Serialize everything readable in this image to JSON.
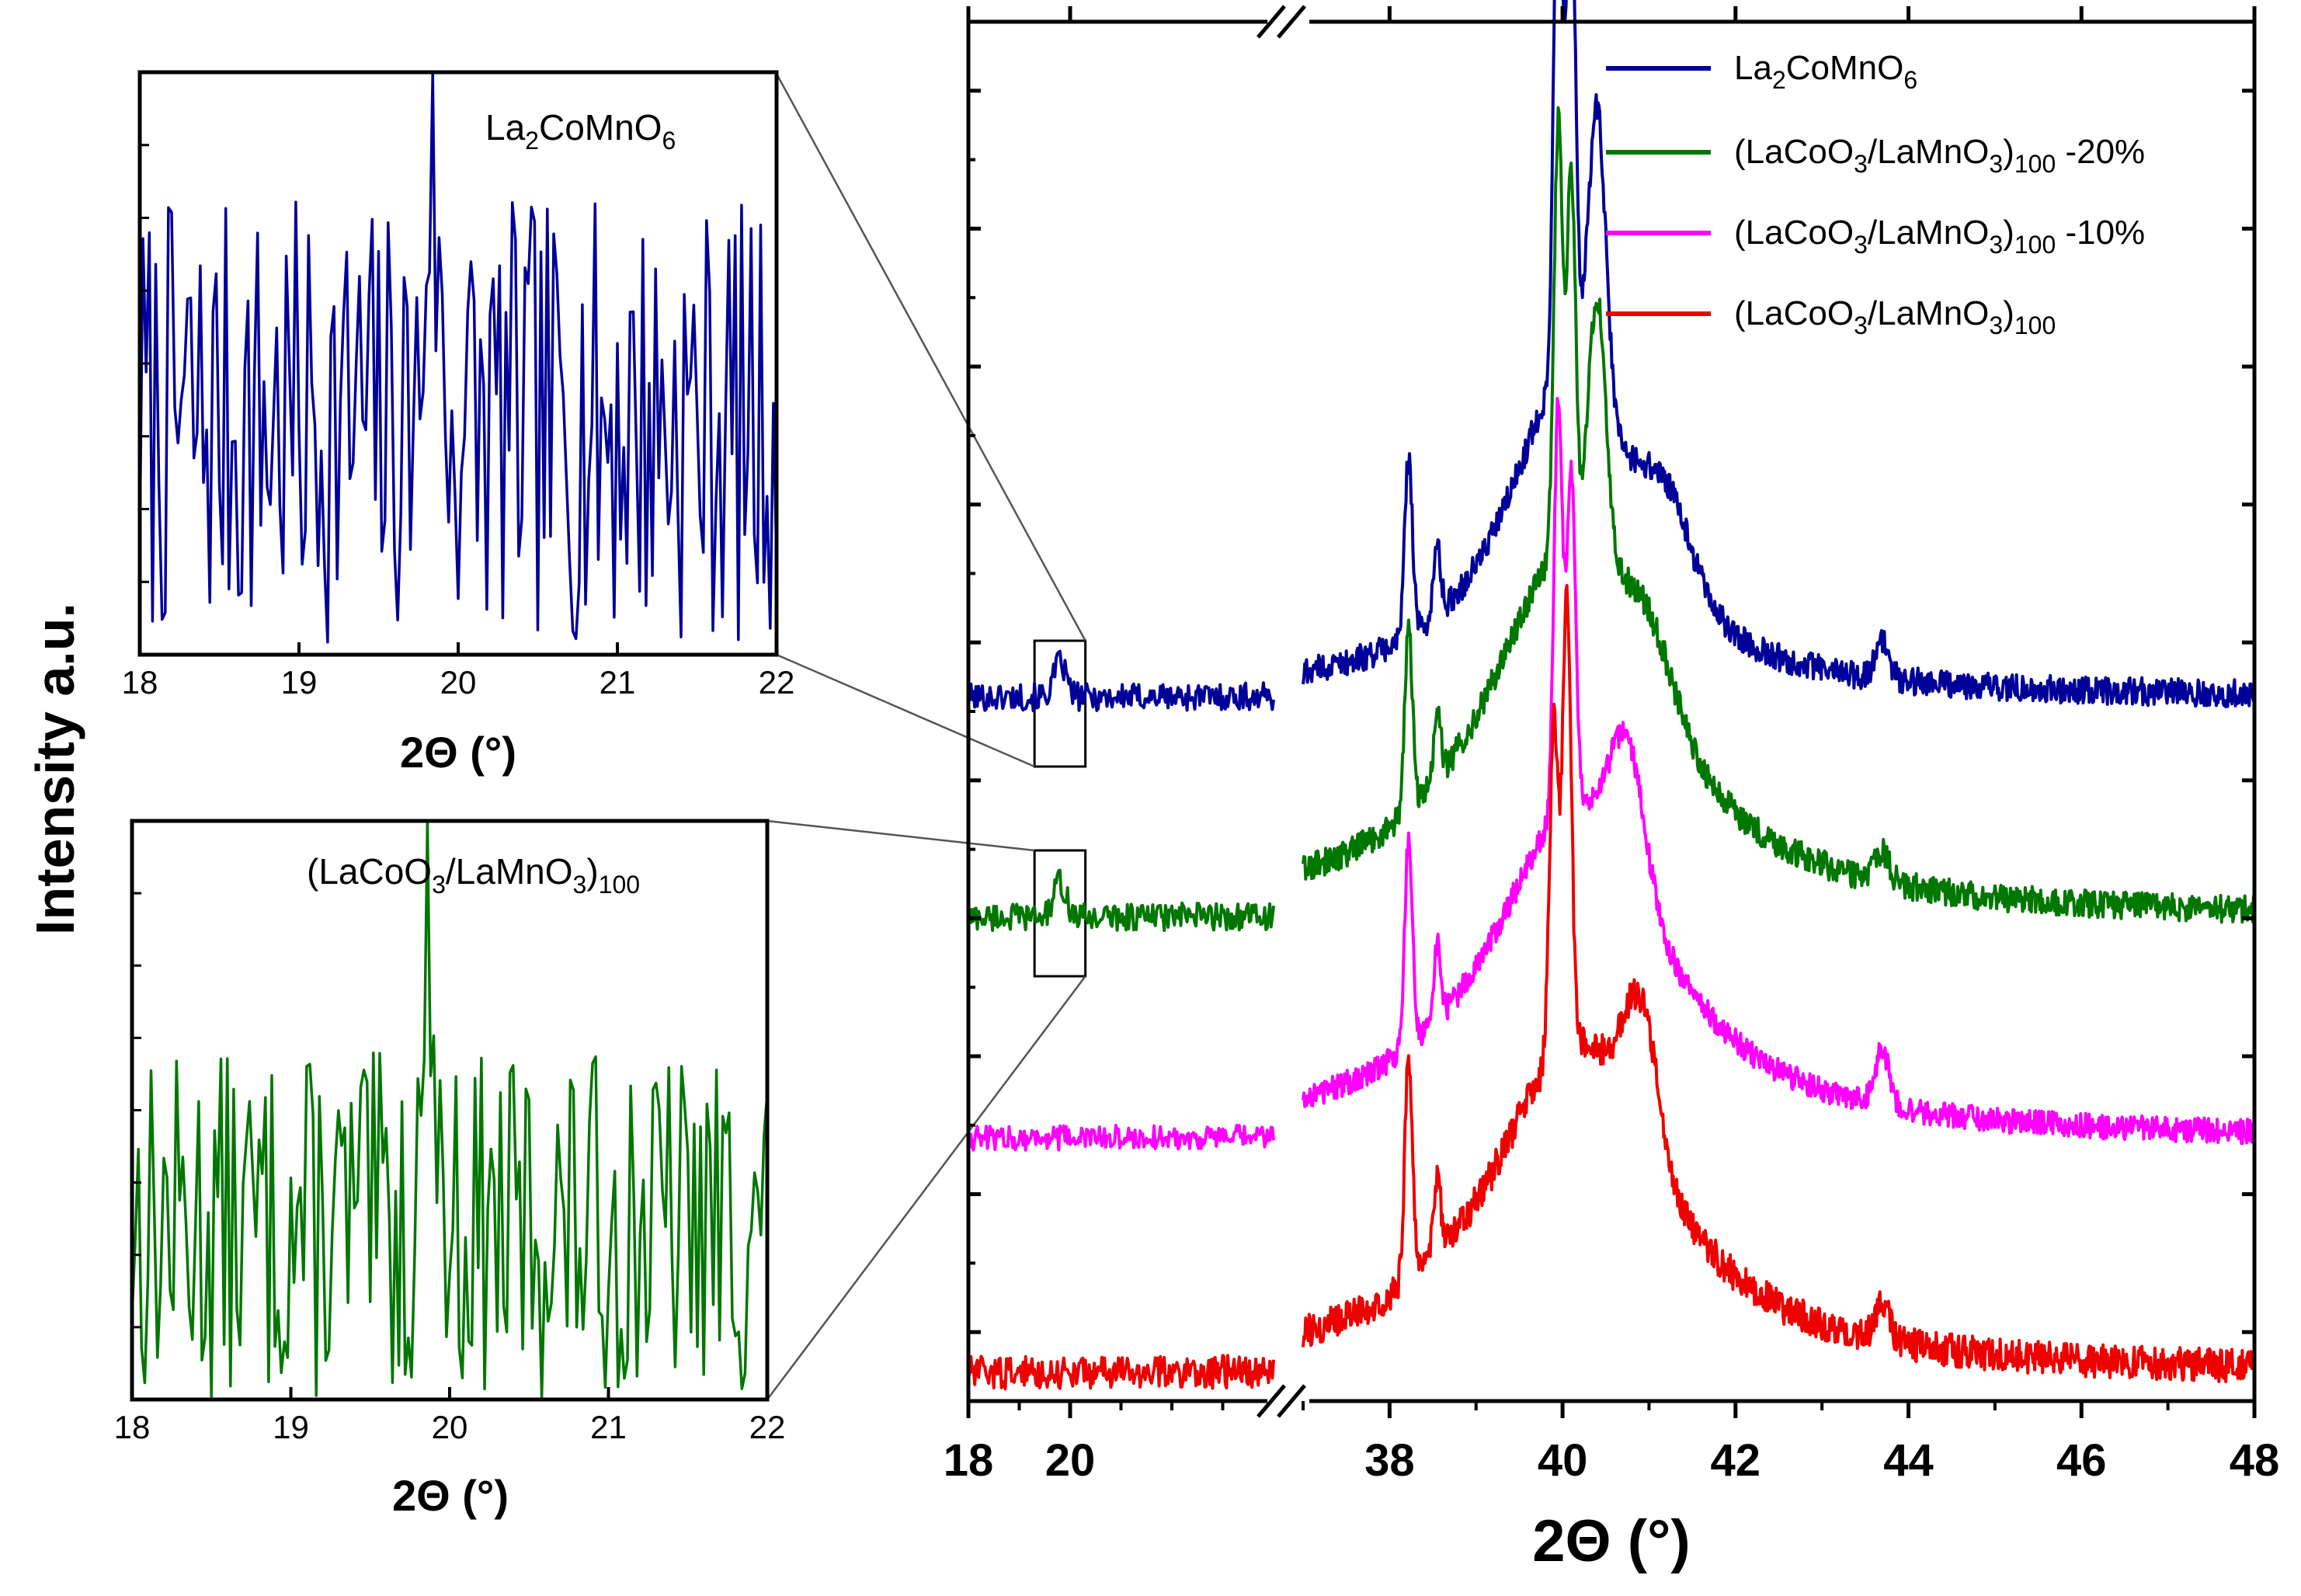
{
  "chart_data": [
    {
      "id": "main",
      "type": "line",
      "xlabel": "2Θ (°)",
      "ylabel": "Intensity a.u.",
      "axis_break": {
        "from": 24,
        "to": 37
      },
      "segments": [
        {
          "xlim": [
            18,
            24
          ]
        },
        {
          "xlim": [
            37,
            48
          ]
        }
      ],
      "xticks": [
        18,
        20,
        38,
        40,
        42,
        44,
        46,
        48
      ],
      "ylim": [
        0,
        10
      ],
      "y_ticks": "unlabeled",
      "legend": {
        "position": "top-right",
        "entries": [
          {
            "series": "La2CoMnO6",
            "base": "La",
            "sub1": "2",
            "mid": "CoMnO",
            "sub2": "6",
            "tail": "",
            "suffix": ""
          },
          {
            "series": "(LaCoO3/LaMnO3)100 -20%",
            "base": "(LaCoO",
            "sub1": "3",
            "mid": "/LaMnO",
            "sub2": "3",
            "tail": ")",
            "sub3": "100",
            "suffix": " -20%"
          },
          {
            "series": "(LaCoO3/LaMnO3)100 -10%",
            "base": "(LaCoO",
            "sub1": "3",
            "mid": "/LaMnO",
            "sub2": "3",
            "tail": ")",
            "sub3": "100",
            "suffix": " -10%"
          },
          {
            "series": "(LaCoO3/LaMnO3)100",
            "base": "(LaCoO",
            "sub1": "3",
            "mid": "/LaMnO",
            "sub2": "3",
            "tail": ")",
            "sub3": "100",
            "suffix": ""
          }
        ]
      },
      "series": [
        {
          "name": "La2CoMnO6",
          "color": "#000099",
          "baseline": 5.1,
          "noise": 0.1,
          "bump20": 0.25,
          "peaks": [
            [
              38.22,
              1.3,
              0.045
            ],
            [
              38.55,
              0.5,
              0.04
            ],
            [
              39.95,
              4.2,
              0.05
            ],
            [
              40.1,
              3.5,
              0.05
            ],
            [
              40.4,
              2.1,
              0.1
            ],
            [
              41.2,
              0.6,
              0.3
            ],
            [
              43.7,
              0.25,
              0.08
            ]
          ],
          "broad": [
            [
              40.1,
              2.4,
              0.9
            ]
          ]
        },
        {
          "name": "(LaCoO3/LaMnO3)100 -20%",
          "color": "#007700",
          "baseline": 3.5,
          "noise": 0.1,
          "bump20": 0.25,
          "peaks": [
            [
              38.22,
              1.3,
              0.045
            ],
            [
              38.55,
              0.5,
              0.04
            ],
            [
              39.95,
              3.1,
              0.05
            ],
            [
              40.1,
              2.7,
              0.05
            ],
            [
              40.4,
              1.9,
              0.1
            ],
            [
              41.0,
              0.5,
              0.3
            ],
            [
              43.7,
              0.22,
              0.08
            ]
          ],
          "broad": [
            [
              40.1,
              2.7,
              1.2
            ]
          ]
        },
        {
          "name": "(LaCoO3/LaMnO3)100 -10%",
          "color": "#ff00ff",
          "baseline": 1.9,
          "noise": 0.09,
          "bump20": 0.0,
          "peaks": [
            [
              38.22,
              1.5,
              0.045
            ],
            [
              38.55,
              0.55,
              0.04
            ],
            [
              39.95,
              3.0,
              0.05
            ],
            [
              40.1,
              2.4,
              0.05
            ],
            [
              40.75,
              1.0,
              0.2
            ],
            [
              43.7,
              0.4,
              0.08
            ]
          ],
          "broad": [
            [
              40.15,
              2.4,
              1.2
            ]
          ]
        },
        {
          "name": "(LaCoO3/LaMnO3)100",
          "color": "#ee0000",
          "baseline": 0.2,
          "noise": 0.12,
          "bump20": 0.0,
          "peaks": [
            [
              38.22,
              1.6,
              0.045
            ],
            [
              38.55,
              0.6,
              0.04
            ],
            [
              39.9,
              2.4,
              0.05
            ],
            [
              40.05,
              3.3,
              0.05
            ],
            [
              40.9,
              1.0,
              0.2
            ],
            [
              43.7,
              0.3,
              0.08
            ]
          ],
          "broad": [
            [
              40.15,
              2.4,
              1.2
            ]
          ]
        }
      ]
    },
    {
      "id": "inset-top",
      "type": "line",
      "xlim": [
        18,
        22
      ],
      "xticks": [
        18,
        19,
        20,
        21,
        22
      ],
      "xlabel": "2Θ (°)",
      "label": {
        "base": "La",
        "sub1": "2",
        "mid": "CoMnO",
        "sub2": "6"
      },
      "series": [
        {
          "name": "La2CoMnO6",
          "color": "#000099",
          "peak": [
            19.83,
            0.5
          ],
          "noise": 0.38,
          "baseline": 0.4
        }
      ]
    },
    {
      "id": "inset-bottom",
      "type": "line",
      "xlim": [
        18,
        22
      ],
      "xticks": [
        18,
        19,
        20,
        21,
        22
      ],
      "xlabel": "2Θ (°)",
      "label": {
        "base": "(LaCoO",
        "sub1": "3",
        "mid": "/LaMnO",
        "sub2": "3",
        "tail": ")",
        "sub3": "100"
      },
      "series": [
        {
          "name": "(LaCoO3/LaMnO3)100",
          "color": "#007700",
          "peak": [
            19.87,
            0.58
          ],
          "noise": 0.3,
          "baseline": 0.3
        }
      ]
    }
  ]
}
